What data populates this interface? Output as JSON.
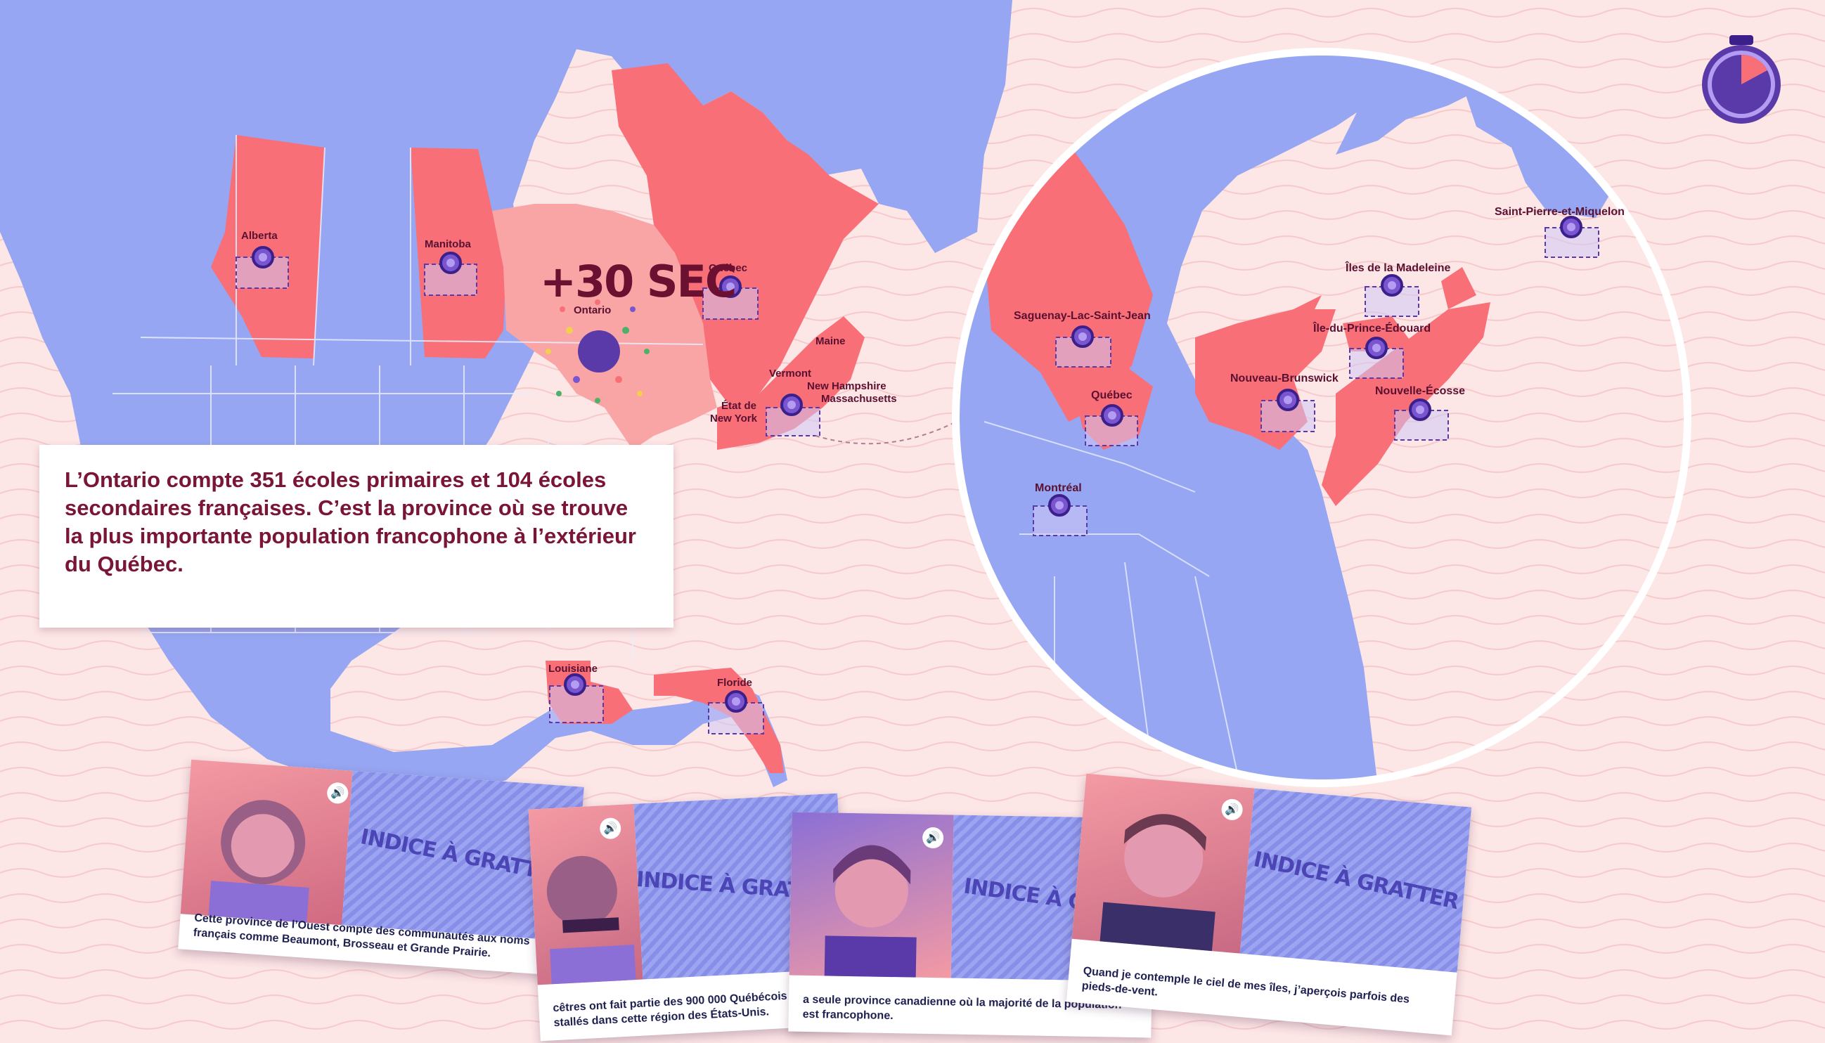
{
  "bonus": {
    "text": "+30 SEC"
  },
  "map": {
    "labels": {
      "alberta": "Alberta",
      "manitoba": "Manitoba",
      "ontario": "Ontario",
      "quebec": "Québec",
      "maine": "Maine",
      "vermont": "Vermont",
      "new_hampshire": "New Hampshire",
      "massachusetts": "Massachusetts",
      "new_york_line1": "État de",
      "new_york_line2": "New York",
      "louisiane": "Louisiane",
      "floride": "Floride"
    }
  },
  "zoom": {
    "labels": {
      "saguenay": "Saguenay-Lac-Saint-Jean",
      "quebec": "Québec",
      "montreal": "Montréal",
      "nouveau_brunswick": "Nouveau-Brunswick",
      "iles_madeleine": "Îles de la Madeleine",
      "ipe": "Île-du-Prince-Édouard",
      "nouvelle_ecosse": "Nouvelle-Écosse",
      "spm": "Saint-Pierre-et-Miquelon"
    }
  },
  "info": {
    "text": "L’Ontario compte 351 écoles primaires et 104 écoles secondaires françaises. C’est la province où se trouve la plus importante population francophone à l’extérieur du Québec."
  },
  "cards": [
    {
      "scratch_label": "INDICE À GRATTER",
      "caption": "Cette province de l’Ouest compte des communautés aux noms français comme Beaumont, Brosseau et Grande Prairie."
    },
    {
      "scratch_label": "INDICE À GRATTER",
      "caption": "cêtres ont fait partie des 900 000 Québécois qui se stallés dans cette région des États-Unis."
    },
    {
      "scratch_label": "INDICE À GRATT",
      "caption": "a seule province canadienne où la majorité de la population est francophone."
    },
    {
      "scratch_label": "INDICE À GRATTER",
      "caption": "Quand je contemple le ciel de mes îles, j’aperçois parfois des pieds-de-vent."
    }
  ],
  "colors": {
    "land": "#96a6f2",
    "highlight": "#f86f77",
    "ontario_active": "#f9a4a5",
    "background": "#fde6e6",
    "text_dark": "#7a1535",
    "timer_ring": "#5a3aa8",
    "timer_slice": "#f86f77"
  },
  "icons": {
    "timer": "stopwatch-icon",
    "speaker": "speaker-icon"
  }
}
